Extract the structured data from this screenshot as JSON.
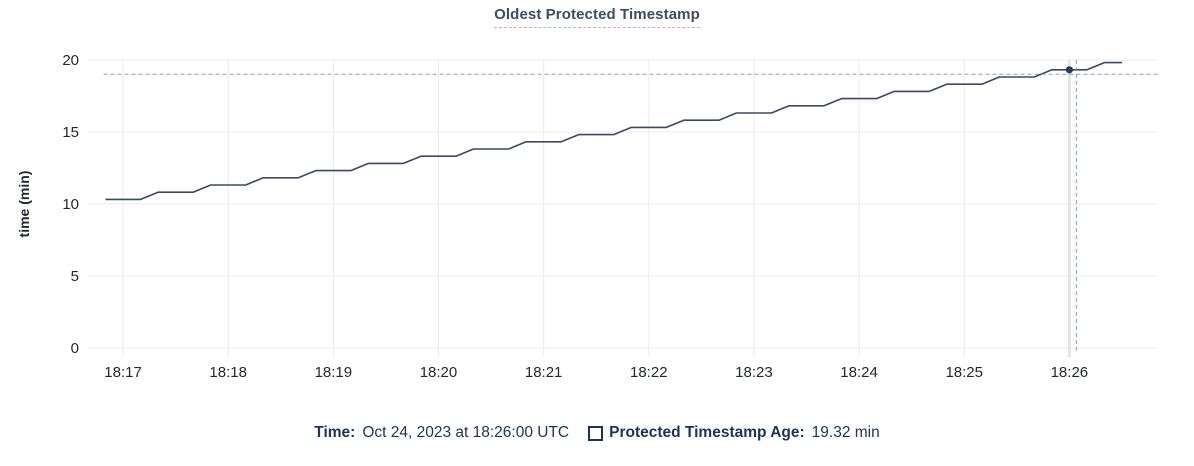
{
  "title": "Oldest Protected Timestamp",
  "legend": {
    "time_label": "Time:",
    "time_value": "Oct 24, 2023 at 18:26:00 UTC",
    "series_label": "Protected Timestamp Age:",
    "series_value": "19.32 min"
  },
  "colors": {
    "line": "#3a4a63",
    "dot": "#2b3a55",
    "crosshair": "#8fa2b0",
    "grid": "#ececec",
    "hover_band": "#e4e4e4",
    "axis_text": "#24282e",
    "title_text": "#3e4c69",
    "legend_text": "#1c335c"
  },
  "chart_data": {
    "type": "line",
    "title": "Oldest Protected Timestamp",
    "xlabel": "",
    "ylabel": "time (min)",
    "ylim": [
      0,
      20
    ],
    "y_ticks": [
      0,
      5,
      10,
      15,
      20
    ],
    "x_ticks": [
      "18:17",
      "18:18",
      "18:19",
      "18:20",
      "18:21",
      "18:22",
      "18:23",
      "18:24",
      "18:25",
      "18:26"
    ],
    "x_domain": [
      "18:16:40",
      "18:26:50"
    ],
    "grid": true,
    "legend_position": "bottom",
    "series": [
      {
        "name": "Protected Timestamp Age",
        "unit": "min",
        "x": [
          "18:16:50",
          "18:17:00",
          "18:17:10",
          "18:17:20",
          "18:17:30",
          "18:17:40",
          "18:17:50",
          "18:18:00",
          "18:18:10",
          "18:18:20",
          "18:18:30",
          "18:18:40",
          "18:18:50",
          "18:19:00",
          "18:19:10",
          "18:19:20",
          "18:19:30",
          "18:19:40",
          "18:19:50",
          "18:20:00",
          "18:20:10",
          "18:20:20",
          "18:20:30",
          "18:20:40",
          "18:20:50",
          "18:21:00",
          "18:21:10",
          "18:21:20",
          "18:21:30",
          "18:21:40",
          "18:21:50",
          "18:22:00",
          "18:22:10",
          "18:22:20",
          "18:22:30",
          "18:22:40",
          "18:22:50",
          "18:23:00",
          "18:23:10",
          "18:23:20",
          "18:23:30",
          "18:23:40",
          "18:23:50",
          "18:24:00",
          "18:24:10",
          "18:24:20",
          "18:24:30",
          "18:24:40",
          "18:24:50",
          "18:25:00",
          "18:25:10",
          "18:25:20",
          "18:25:30",
          "18:25:40",
          "18:25:50",
          "18:26:00",
          "18:26:10",
          "18:26:20",
          "18:26:30"
        ],
        "values": [
          10.32,
          10.32,
          10.32,
          10.82,
          10.82,
          10.82,
          11.32,
          11.32,
          11.32,
          11.82,
          11.82,
          11.82,
          12.32,
          12.32,
          12.32,
          12.82,
          12.82,
          12.82,
          13.32,
          13.32,
          13.32,
          13.82,
          13.82,
          13.82,
          14.32,
          14.32,
          14.32,
          14.82,
          14.82,
          14.82,
          15.32,
          15.32,
          15.32,
          15.82,
          15.82,
          15.82,
          16.32,
          16.32,
          16.32,
          16.82,
          16.82,
          16.82,
          17.32,
          17.32,
          17.32,
          17.82,
          17.82,
          17.82,
          18.32,
          18.32,
          18.32,
          18.82,
          18.82,
          18.82,
          19.32,
          19.32,
          19.32,
          19.82,
          19.82
        ]
      }
    ],
    "hover": {
      "time": "18:26:00",
      "value": 19.32,
      "time_display": "Oct 24, 2023 at 18:26:00 UTC",
      "value_display": "19.32 min"
    }
  }
}
